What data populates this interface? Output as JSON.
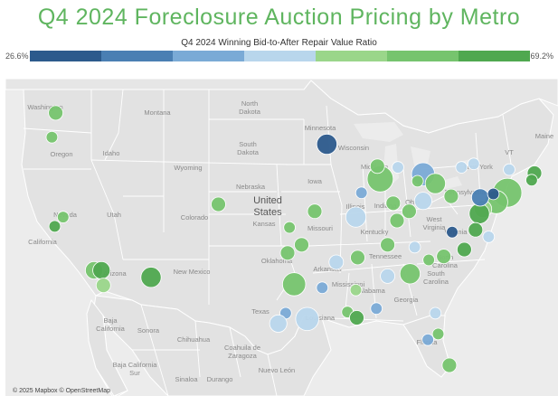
{
  "title": "Q4 2024 Foreclosure Auction Pricing by Metro",
  "colors": {
    "title": "#5fb55f",
    "land": "#e2e2e2",
    "water": "#ececec",
    "border": "#ffffff"
  },
  "legend": {
    "title": "Q4 2024 Winning Bid-to-After Repair Value Ratio",
    "min_label": "26.6%",
    "max_label": "69.2%",
    "steps": [
      "#2c5a8c",
      "#4a7fb3",
      "#7aaad6",
      "#b8d6ec",
      "#9ad68a",
      "#76c46e",
      "#4fa84f"
    ]
  },
  "map": {
    "country_label": "United States",
    "labels": {
      "washington": "Washington",
      "montana": "Montana",
      "north_dakota": "North Dakota",
      "minnesota": "Minnesota",
      "oregon": "Oregon",
      "idaho": "Idaho",
      "south_dakota": "South Dakota",
      "wisconsin": "Wisconsin",
      "wyoming": "Wyoming",
      "michigan": "Michigan",
      "new_york": "New York",
      "vermont": "VT",
      "maine": "Maine",
      "nebraska": "Nebraska",
      "iowa": "Iowa",
      "illinois": "Illinois",
      "indiana": "Indiana",
      "ohio": "Ohio",
      "pennsylvania": "Pennsylvania",
      "nevada": "Nevada",
      "utah": "Utah",
      "colorado": "Colorado",
      "kansas": "Kansas",
      "missouri": "Missouri",
      "kentucky": "Kentucky",
      "west_virginia": "West Virginia",
      "virginia": "Virginia",
      "california": "California",
      "oklahoma": "Oklahoma",
      "arkansas": "Arkansas",
      "tennessee": "Tennessee",
      "north_carolina": "North Carolina",
      "south_carolina": "South Carolina",
      "arizona": "Arizona",
      "new_mexico": "New Mexico",
      "mississippi": "Mississippi",
      "alabama": "Alabama",
      "georgia": "Georgia",
      "texas": "Texas",
      "louisiana": "Louisiana",
      "florida": "Florida",
      "baja_california": "Baja California",
      "sonora": "Sonora",
      "chihuahua": "Chihuahua",
      "coahuila": "Coahuila de Zaragoza",
      "baja_california_sur": "Baja California Sur",
      "sinaloa": "Sinaloa",
      "durango": "Durango",
      "nuevo_leon": "Nuevo León"
    },
    "attribution": "© 2025 Mapbox © OpenStreetMap",
    "metros": [
      {
        "metro": "Seattle",
        "lon": -122.3,
        "lat": 47.6,
        "ratio": 0.6,
        "size": 3
      },
      {
        "metro": "Portland",
        "lon": -122.7,
        "lat": 45.5,
        "ratio": 0.58,
        "size": 2
      },
      {
        "metro": "Sacramento",
        "lon": -121.5,
        "lat": 38.6,
        "ratio": 0.6,
        "size": 2
      },
      {
        "metro": "San Francisco",
        "lon": -122.4,
        "lat": 37.8,
        "ratio": 0.66,
        "size": 2
      },
      {
        "metro": "Los Angeles",
        "lon": -118.2,
        "lat": 34.0,
        "ratio": 0.58,
        "size": 4
      },
      {
        "metro": "Riverside",
        "lon": -117.4,
        "lat": 34.0,
        "ratio": 0.65,
        "size": 4
      },
      {
        "metro": "San Diego",
        "lon": -117.2,
        "lat": 32.7,
        "ratio": 0.56,
        "size": 3
      },
      {
        "metro": "Phoenix",
        "lon": -112.1,
        "lat": 33.4,
        "ratio": 0.68,
        "size": 5
      },
      {
        "metro": "Denver",
        "lon": -104.9,
        "lat": 39.7,
        "ratio": 0.6,
        "size": 3
      },
      {
        "metro": "Minneapolis",
        "lon": -93.3,
        "lat": 44.9,
        "ratio": 0.27,
        "size": 5
      },
      {
        "metro": "Kansas City",
        "lon": -94.6,
        "lat": 39.1,
        "ratio": 0.58,
        "size": 3
      },
      {
        "metro": "Wichita",
        "lon": -97.3,
        "lat": 37.7,
        "ratio": 0.58,
        "size": 2
      },
      {
        "metro": "Oklahoma City",
        "lon": -97.5,
        "lat": 35.5,
        "ratio": 0.6,
        "size": 3
      },
      {
        "metro": "Tulsa",
        "lon": -96.0,
        "lat": 36.2,
        "ratio": 0.62,
        "size": 3
      },
      {
        "metro": "Dallas",
        "lon": -96.8,
        "lat": 32.8,
        "ratio": 0.58,
        "size": 6
      },
      {
        "metro": "Austin",
        "lon": -97.7,
        "lat": 30.3,
        "ratio": 0.4,
        "size": 2
      },
      {
        "metro": "San Antonio",
        "lon": -98.5,
        "lat": 29.4,
        "ratio": 0.45,
        "size": 4
      },
      {
        "metro": "Houston",
        "lon": -95.4,
        "lat": 29.8,
        "ratio": 0.47,
        "size": 6
      },
      {
        "metro": "Shreveport",
        "lon": -93.8,
        "lat": 32.5,
        "ratio": 0.42,
        "size": 2
      },
      {
        "metro": "Little Rock",
        "lon": -92.3,
        "lat": 34.7,
        "ratio": 0.45,
        "size": 3
      },
      {
        "metro": "Memphis",
        "lon": -90.0,
        "lat": 35.1,
        "ratio": 0.6,
        "size": 3
      },
      {
        "metro": "Jackson",
        "lon": -90.2,
        "lat": 32.3,
        "ratio": 0.56,
        "size": 2
      },
      {
        "metro": "Baton Rouge",
        "lon": -91.1,
        "lat": 30.4,
        "ratio": 0.6,
        "size": 2
      },
      {
        "metro": "New Orleans",
        "lon": -90.1,
        "lat": 29.9,
        "ratio": 0.66,
        "size": 3
      },
      {
        "metro": "Mobile",
        "lon": -88.0,
        "lat": 30.7,
        "ratio": 0.44,
        "size": 2
      },
      {
        "metro": "Birmingham",
        "lon": -86.8,
        "lat": 33.5,
        "ratio": 0.5,
        "size": 3
      },
      {
        "metro": "Atlanta",
        "lon": -84.4,
        "lat": 33.7,
        "ratio": 0.62,
        "size": 5
      },
      {
        "metro": "Nashville",
        "lon": -86.8,
        "lat": 36.2,
        "ratio": 0.6,
        "size": 3
      },
      {
        "metro": "Knoxville",
        "lon": -83.9,
        "lat": 36.0,
        "ratio": 0.46,
        "size": 2
      },
      {
        "metro": "Louisville",
        "lon": -85.8,
        "lat": 38.3,
        "ratio": 0.58,
        "size": 3
      },
      {
        "metro": "St. Louis",
        "lon": -90.2,
        "lat": 38.6,
        "ratio": 0.47,
        "size": 5
      },
      {
        "metro": "Chicago",
        "lon": -87.6,
        "lat": 41.9,
        "ratio": 0.58,
        "size": 7
      },
      {
        "metro": "Milwaukee",
        "lon": -87.9,
        "lat": 43.0,
        "ratio": 0.6,
        "size": 3
      },
      {
        "metro": "Peoria",
        "lon": -89.6,
        "lat": 40.7,
        "ratio": 0.4,
        "size": 2
      },
      {
        "metro": "Indianapolis",
        "lon": -86.2,
        "lat": 39.8,
        "ratio": 0.6,
        "size": 3
      },
      {
        "metro": "Detroit",
        "lon": -83.0,
        "lat": 42.3,
        "ratio": 0.42,
        "size": 6
      },
      {
        "metro": "Grand Rapids",
        "lon": -85.7,
        "lat": 42.9,
        "ratio": 0.46,
        "size": 2
      },
      {
        "metro": "Toledo",
        "lon": -83.6,
        "lat": 41.7,
        "ratio": 0.6,
        "size": 2
      },
      {
        "metro": "Cleveland",
        "lon": -81.7,
        "lat": 41.5,
        "ratio": 0.58,
        "size": 5
      },
      {
        "metro": "Columbus",
        "lon": -83.0,
        "lat": 40.0,
        "ratio": 0.45,
        "size": 4
      },
      {
        "metro": "Cincinnati",
        "lon": -84.5,
        "lat": 39.1,
        "ratio": 0.6,
        "size": 3
      },
      {
        "metro": "Pittsburgh",
        "lon": -80.0,
        "lat": 40.4,
        "ratio": 0.6,
        "size": 3
      },
      {
        "metro": "Buffalo",
        "lon": -78.9,
        "lat": 42.9,
        "ratio": 0.46,
        "size": 2
      },
      {
        "metro": "Rochester",
        "lon": -77.6,
        "lat": 43.2,
        "ratio": 0.47,
        "size": 2
      },
      {
        "metro": "Albany",
        "lon": -73.8,
        "lat": 42.7,
        "ratio": 0.45,
        "size": 2
      },
      {
        "metro": "Boston",
        "lon": -71.1,
        "lat": 42.4,
        "ratio": 0.66,
        "size": 3
      },
      {
        "metro": "Providence",
        "lon": -71.4,
        "lat": 41.8,
        "ratio": 0.65,
        "size": 2
      },
      {
        "metro": "New York",
        "lon": -74.0,
        "lat": 40.7,
        "ratio": 0.62,
        "size": 8
      },
      {
        "metro": "Philadelphia",
        "lon": -75.2,
        "lat": 39.9,
        "ratio": 0.62,
        "size": 6
      },
      {
        "metro": "Baltimore",
        "lon": -76.6,
        "lat": 39.3,
        "ratio": 0.56,
        "size": 4
      },
      {
        "metro": "Washington",
        "lon": -77.0,
        "lat": 38.9,
        "ratio": 0.64,
        "size": 5
      },
      {
        "metro": "Harrisburg",
        "lon": -76.9,
        "lat": 40.3,
        "ratio": 0.36,
        "size": 4
      },
      {
        "metro": "Allentown",
        "lon": -75.5,
        "lat": 40.6,
        "ratio": 0.3,
        "size": 2
      },
      {
        "metro": "Richmond",
        "lon": -77.4,
        "lat": 37.5,
        "ratio": 0.66,
        "size": 3
      },
      {
        "metro": "Virginia Beach",
        "lon": -76.0,
        "lat": 36.9,
        "ratio": 0.47,
        "size": 2
      },
      {
        "metro": "Roanoke",
        "lon": -79.9,
        "lat": 37.3,
        "ratio": 0.27,
        "size": 2
      },
      {
        "metro": "Charlotte",
        "lon": -80.8,
        "lat": 35.2,
        "ratio": 0.6,
        "size": 3
      },
      {
        "metro": "Raleigh",
        "lon": -78.6,
        "lat": 35.8,
        "ratio": 0.68,
        "size": 3
      },
      {
        "metro": "Greenville",
        "lon": -82.4,
        "lat": 34.9,
        "ratio": 0.6,
        "size": 2
      },
      {
        "metro": "Jacksonville",
        "lon": -81.7,
        "lat": 30.3,
        "ratio": 0.46,
        "size": 2
      },
      {
        "metro": "Tampa",
        "lon": -82.5,
        "lat": 28.0,
        "ratio": 0.4,
        "size": 2
      },
      {
        "metro": "Orlando",
        "lon": -81.4,
        "lat": 28.5,
        "ratio": 0.62,
        "size": 2
      },
      {
        "metro": "Miami",
        "lon": -80.2,
        "lat": 25.8,
        "ratio": 0.6,
        "size": 3
      }
    ]
  }
}
